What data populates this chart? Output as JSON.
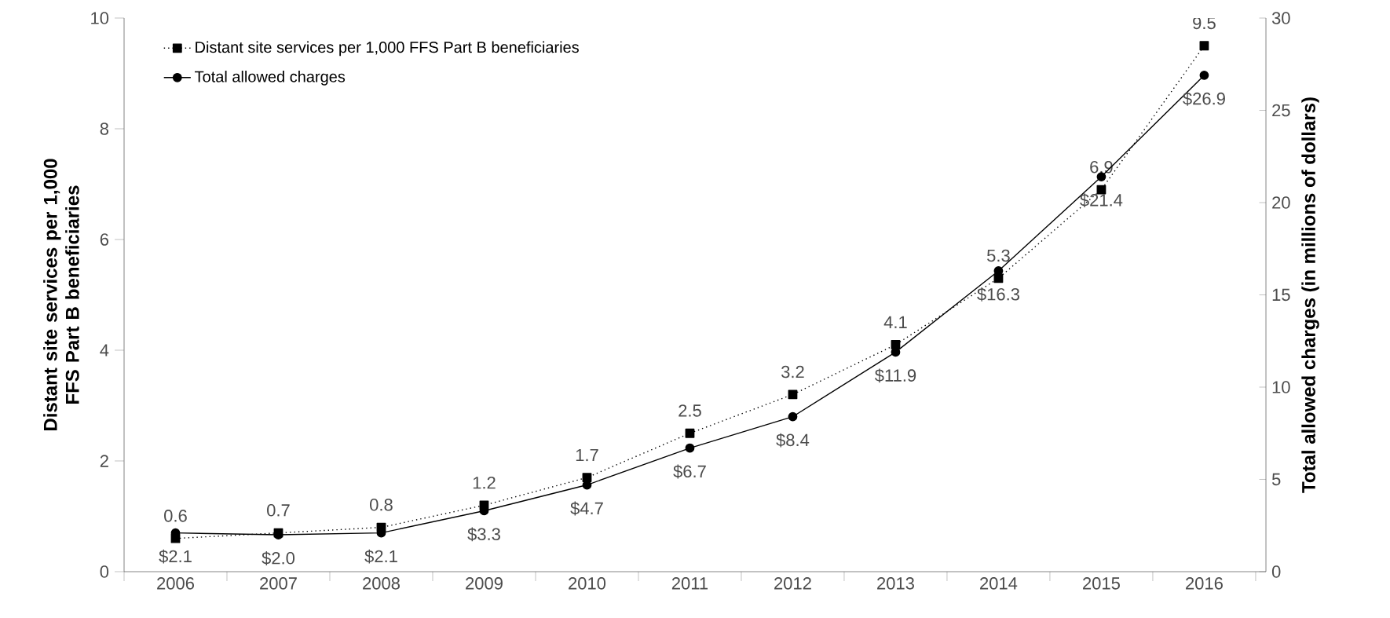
{
  "chart_data": {
    "type": "line",
    "x": [
      2006,
      2007,
      2008,
      2009,
      2010,
      2011,
      2012,
      2013,
      2014,
      2015,
      2016
    ],
    "xlim": [
      2005.5,
      2016.6
    ],
    "xticks": [
      {
        "value": 2005.5,
        "label": null
      },
      {
        "value": 2006,
        "label": "2006"
      },
      {
        "value": 2006.5,
        "label": null
      },
      {
        "value": 2007,
        "label": "2007"
      },
      {
        "value": 2007.5,
        "label": null
      },
      {
        "value": 2008,
        "label": "2008"
      },
      {
        "value": 2008.5,
        "label": null
      },
      {
        "value": 2009,
        "label": "2009"
      },
      {
        "value": 2009.5,
        "label": null
      },
      {
        "value": 2010,
        "label": "2010"
      },
      {
        "value": 2010.5,
        "label": null
      },
      {
        "value": 2011,
        "label": "2011"
      },
      {
        "value": 2011.5,
        "label": null
      },
      {
        "value": 2012,
        "label": "2012"
      },
      {
        "value": 2012.5,
        "label": null
      },
      {
        "value": 2013,
        "label": "2013"
      },
      {
        "value": 2013.5,
        "label": null
      },
      {
        "value": 2014,
        "label": "2014"
      },
      {
        "value": 2014.5,
        "label": null
      },
      {
        "value": 2015,
        "label": "2015"
      },
      {
        "value": 2015.5,
        "label": null
      },
      {
        "value": 2016,
        "label": "2016"
      },
      {
        "value": 2016.5,
        "label": null
      }
    ],
    "ylim": [
      0,
      10
    ],
    "yticks": [
      0,
      2,
      4,
      6,
      8,
      10
    ],
    "y2lim": [
      0,
      30
    ],
    "y2ticks": [
      0,
      5,
      10,
      15,
      20,
      25,
      30
    ],
    "ylabel": "Distant site services per 1,000 FFS Part B beneficiaries",
    "y2label": "Total allowed charges (in millions of dollars)",
    "legend": "top left",
    "grid": false,
    "series": [
      {
        "name": "Distant site services per 1,000 FFS Part B beneficiaries",
        "color": "#000000",
        "marker": "square",
        "line_style": "dotted",
        "values": [
          0.6,
          0.7,
          0.8,
          1.2,
          1.7,
          2.5,
          3.2,
          4.1,
          5.3,
          6.9,
          9.5
        ],
        "value_labels": [
          "0.6",
          "0.7",
          "0.8",
          "1.2",
          "1.7",
          "2.5",
          "3.2",
          "4.1",
          "5.3",
          "6.9",
          "9.5"
        ]
      },
      {
        "name": "Total allowed charges",
        "color": "#000000",
        "marker": "circle",
        "line_style": "solid",
        "axis": "y2",
        "values": [
          2.1,
          2.0,
          2.1,
          3.3,
          4.7,
          6.7,
          8.4,
          11.9,
          16.3,
          21.4,
          26.9
        ],
        "value_labels": [
          "$2.1",
          "$2.0",
          "$2.1",
          "$3.3",
          "$4.7",
          "$6.7",
          "$8.4",
          "$11.9",
          "$16.3",
          "$21.4",
          "$26.9"
        ]
      }
    ]
  }
}
